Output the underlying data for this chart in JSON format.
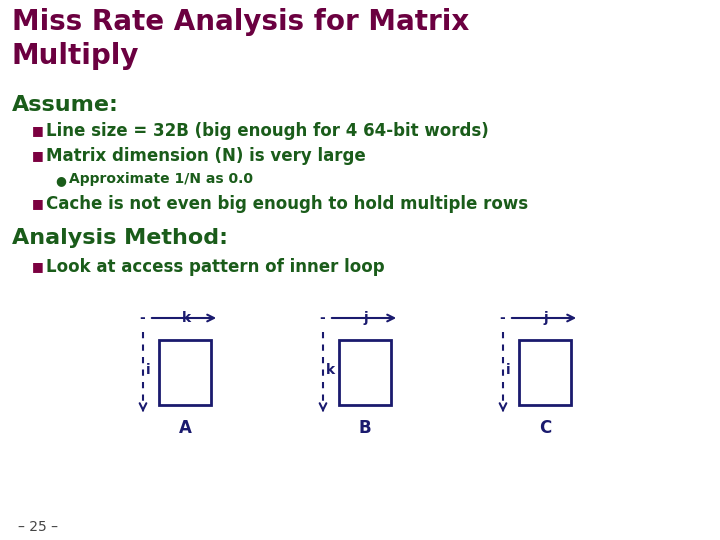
{
  "title_line1": "Miss Rate Analysis for Matrix",
  "title_line2": "Multiply",
  "title_color": "#6B0040",
  "section_color": "#1a5c1a",
  "bullet_color": "#1a5c1a",
  "bg_color": "#FFFFFF",
  "assume_label": "Assume:",
  "analysis_label": "Analysis Method:",
  "bullets": [
    "Line size = 32B (big enough for 4 64-bit words)",
    "Matrix dimension (N) is very large",
    "Cache is not even big enough to hold multiple rows"
  ],
  "sub_bullet": "Approximate 1/N as 0.0",
  "analysis_bullet": "Look at access pattern of inner loop",
  "matrix_labels": [
    "A",
    "B",
    "C"
  ],
  "matrix_horiz": [
    "k",
    "j",
    "j"
  ],
  "matrix_vert": [
    "i",
    "k",
    "i"
  ],
  "page_number": "– 25 –",
  "arrow_color": "#1a1a6e",
  "box_color": "#1a1a6e",
  "bullet_square_color": "#7B0040"
}
